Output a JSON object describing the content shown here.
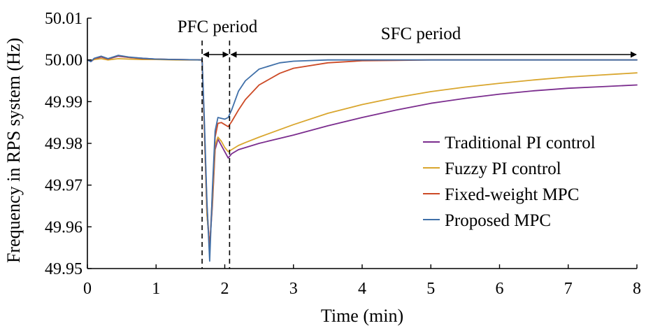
{
  "chart_data": {
    "type": "line",
    "title": "",
    "xlabel": "Time (min)",
    "ylabel": "Frequency in RPS system (Hz)",
    "xlim": [
      0,
      8
    ],
    "ylim": [
      49.95,
      50.01
    ],
    "xticks": [
      "0",
      "1",
      "2",
      "3",
      "4",
      "5",
      "6",
      "7",
      "8"
    ],
    "yticks": [
      "49.95",
      "49.96",
      "49.97",
      "49.98",
      "49.99",
      "50.00",
      "50.01"
    ],
    "grid": false,
    "legend_position": "right",
    "annotations": [
      {
        "text": "PFC period",
        "x_start": 1.67,
        "x_end": 2.07
      },
      {
        "text": "SFC period",
        "x_start": 2.07,
        "x_end": 8.0
      }
    ],
    "vlines": [
      1.67,
      2.07
    ],
    "series": [
      {
        "name": "Traditional PI control",
        "color": "#7b2d8e",
        "x": [
          0,
          0.05,
          0.1,
          0.2,
          0.3,
          0.45,
          0.6,
          0.8,
          1.0,
          1.3,
          1.67,
          1.7,
          1.74,
          1.78,
          1.82,
          1.86,
          1.9,
          1.95,
          2.0,
          2.05,
          2.1,
          2.2,
          2.3,
          2.5,
          3.0,
          3.5,
          4.0,
          4.5,
          5.0,
          5.5,
          6.0,
          6.5,
          7.0,
          7.5,
          8.0
        ],
        "y": [
          50.0,
          49.9996,
          50.0002,
          50.0007,
          50.0002,
          50.0009,
          50.0006,
          50.0004,
          50.0002,
          50.0001,
          50.0,
          49.985,
          49.963,
          49.9555,
          49.965,
          49.9785,
          49.981,
          49.9795,
          49.978,
          49.9765,
          49.9775,
          49.9785,
          49.979,
          49.98,
          49.982,
          49.9842,
          49.9862,
          49.988,
          49.9896,
          49.9908,
          49.9918,
          49.9926,
          49.9932,
          49.9936,
          49.994
        ]
      },
      {
        "name": "Fuzzy PI control",
        "color": "#d9a62e",
        "x": [
          0,
          0.05,
          0.1,
          0.2,
          0.3,
          0.45,
          0.6,
          0.8,
          1.0,
          1.3,
          1.67,
          1.7,
          1.74,
          1.78,
          1.82,
          1.86,
          1.9,
          1.95,
          2.0,
          2.05,
          2.1,
          2.2,
          2.3,
          2.5,
          3.0,
          3.5,
          4.0,
          4.5,
          5.0,
          5.5,
          6.0,
          6.5,
          7.0,
          7.5,
          8.0
        ],
        "y": [
          50.0,
          49.9998,
          50.0001,
          50.0003,
          50.0,
          50.0003,
          50.0002,
          50.0001,
          50.0001,
          50.0,
          50.0,
          49.985,
          49.963,
          49.955,
          49.966,
          49.9795,
          49.9815,
          49.9805,
          49.979,
          49.978,
          49.9785,
          49.9795,
          49.9802,
          49.9815,
          49.9845,
          49.9872,
          49.9893,
          49.991,
          49.9924,
          49.9935,
          49.9944,
          49.9952,
          49.9959,
          49.9964,
          49.9969
        ]
      },
      {
        "name": "Fixed-weight MPC",
        "color": "#cc4a26",
        "x": [
          0,
          0.05,
          0.1,
          0.2,
          0.3,
          0.45,
          0.6,
          0.8,
          1.0,
          1.3,
          1.67,
          1.7,
          1.74,
          1.78,
          1.82,
          1.86,
          1.9,
          1.95,
          2.0,
          2.05,
          2.1,
          2.2,
          2.3,
          2.5,
          2.8,
          3.0,
          3.5,
          4.0,
          4.5,
          5.0,
          6.0,
          7.0,
          8.0
        ],
        "y": [
          50.0,
          49.9997,
          50.0003,
          50.0008,
          50.0002,
          50.001,
          50.0006,
          50.0003,
          50.0002,
          50.0001,
          50.0,
          49.986,
          49.965,
          49.9545,
          49.968,
          49.9815,
          49.9848,
          49.985,
          49.9845,
          49.984,
          49.9852,
          49.988,
          49.9905,
          49.994,
          49.9968,
          49.998,
          49.9993,
          49.9998,
          49.9999,
          50.0,
          50.0,
          50.0,
          50.0
        ]
      },
      {
        "name": "Proposed MPC",
        "color": "#3f6fa8",
        "x": [
          0,
          0.05,
          0.1,
          0.2,
          0.3,
          0.45,
          0.6,
          0.8,
          1.0,
          1.3,
          1.67,
          1.7,
          1.74,
          1.78,
          1.82,
          1.86,
          1.9,
          1.95,
          2.0,
          2.05,
          2.1,
          2.2,
          2.3,
          2.5,
          2.8,
          3.0,
          3.5,
          4.0,
          5.0,
          6.0,
          7.0,
          8.0
        ],
        "y": [
          50.0,
          49.9996,
          50.0004,
          50.0009,
          50.0003,
          50.0011,
          50.0007,
          50.0004,
          50.0002,
          50.0001,
          50.0,
          49.987,
          49.966,
          49.9518,
          49.969,
          49.983,
          49.9862,
          49.986,
          49.9858,
          49.9862,
          49.988,
          49.9925,
          49.995,
          49.9978,
          49.9993,
          49.9997,
          50.0,
          50.0,
          50.0,
          50.0,
          50.0,
          50.0
        ]
      }
    ]
  }
}
